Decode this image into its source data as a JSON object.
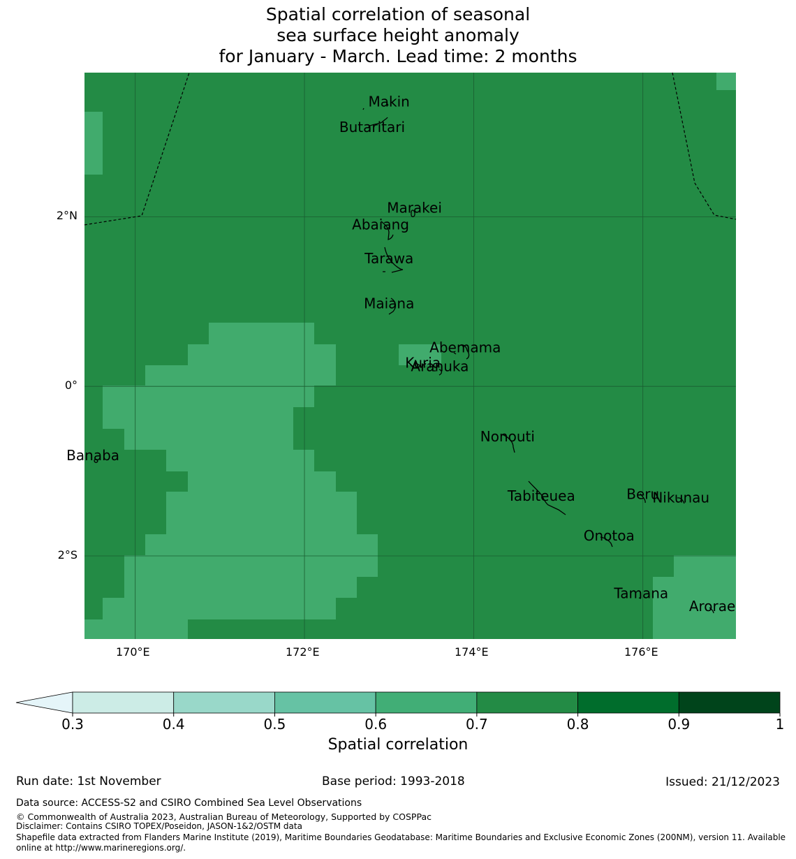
{
  "title": {
    "line1": "Spatial correlation of seasonal",
    "line2": "sea surface height anomaly",
    "line3": "for January - March. Lead time: 2 months"
  },
  "axes": {
    "lon_ticks": [
      "170°E",
      "172°E",
      "174°E",
      "176°E"
    ],
    "lat_ticks": [
      "2°N",
      "0°",
      "2°S"
    ]
  },
  "map": {
    "lon_range": [
      169.4,
      177.1
    ],
    "lat_range": [
      -2.98,
      3.7
    ],
    "islands": [
      {
        "name": "Makin",
        "lon": 173.0,
        "lat": 3.3
      },
      {
        "name": "Butaritari",
        "lon": 172.8,
        "lat": 3.0
      },
      {
        "name": "Marakei",
        "lon": 173.3,
        "lat": 2.05
      },
      {
        "name": "Abaiang",
        "lon": 172.9,
        "lat": 1.85
      },
      {
        "name": "Tarawa",
        "lon": 173.0,
        "lat": 1.45
      },
      {
        "name": "Maiana",
        "lon": 173.0,
        "lat": 0.92
      },
      {
        "name": "Abemama",
        "lon": 173.9,
        "lat": 0.4
      },
      {
        "name": "Kuria",
        "lon": 173.4,
        "lat": 0.22
      },
      {
        "name": "Aranuka",
        "lon": 173.6,
        "lat": 0.18
      },
      {
        "name": "Nonouti",
        "lon": 174.4,
        "lat": -0.65
      },
      {
        "name": "Banaba",
        "lon": 169.5,
        "lat": -0.87
      },
      {
        "name": "Tabiteuea",
        "lon": 174.8,
        "lat": -1.35
      },
      {
        "name": "Beru",
        "lon": 176.0,
        "lat": -1.33
      },
      {
        "name": "Nikunau",
        "lon": 176.45,
        "lat": -1.37
      },
      {
        "name": "Onotoa",
        "lon": 175.6,
        "lat": -1.82
      },
      {
        "name": "Tamana",
        "lon": 175.98,
        "lat": -2.5
      },
      {
        "name": "Arorae",
        "lon": 176.82,
        "lat": -2.65
      }
    ]
  },
  "colors": {
    "dark": "#238b45",
    "light": "#41ab6d",
    "gridline": "#1a5c30"
  },
  "colorbar": {
    "title": "Spatial correlation",
    "ticks": [
      "0.3",
      "0.4",
      "0.5",
      "0.6",
      "0.7",
      "0.8",
      "0.9",
      "1"
    ],
    "levels": [
      0.3,
      0.4,
      0.5,
      0.6,
      0.7,
      0.8,
      0.9,
      1.0
    ],
    "colors": [
      "#ccece6",
      "#99d8c9",
      "#66c2a4",
      "#41ae76",
      "#238b45",
      "#006d2c",
      "#00441b"
    ],
    "extend_color": "#e5f5f9"
  },
  "footer": {
    "run_date": "Run date: 1st November",
    "base_period": "Base period: 1993-2018",
    "issued": "Issued: 21/12/2023",
    "data_source": "Data source: ACCESS-S2 and CSIRO Combined Sea Level Observations",
    "copyright": "© Commonwealth of Australia 2023, Australian Bureau of Meteorology, Supported by COSPPac",
    "disclaimer": "Disclaimer: Contains CSIRO TOPEX/Poseidon, JASON-1&2/OSTM data",
    "shapefile1": "Shapefile data extracted from Flanders Marine Institute (2019), Maritime Boundaries Geodatabase: Maritime Boundaries and Exclusive Economic Zones (200NM), version 11. Available",
    "shapefile2": "online at http://www.marineregions.org/."
  }
}
